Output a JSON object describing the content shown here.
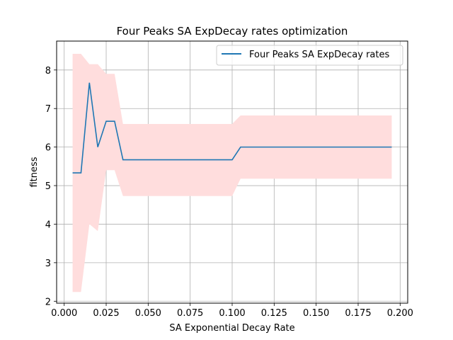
{
  "chart_data": {
    "type": "line",
    "title": "Four Peaks SA ExpDecay rates optimization",
    "xlabel": "SA Exponential Decay Rate",
    "ylabel": "fitness",
    "xlim": [
      -0.0045,
      0.2045
    ],
    "ylim": [
      1.95,
      8.75
    ],
    "xticks": [
      0.0,
      0.025,
      0.05,
      0.075,
      0.1,
      0.125,
      0.15,
      0.175,
      0.2
    ],
    "xtick_labels": [
      "0.000",
      "0.025",
      "0.050",
      "0.075",
      "0.100",
      "0.125",
      "0.150",
      "0.175",
      "0.200"
    ],
    "yticks": [
      2,
      3,
      4,
      5,
      6,
      7,
      8
    ],
    "ytick_labels": [
      "2",
      "3",
      "4",
      "5",
      "6",
      "7",
      "8"
    ],
    "grid": true,
    "legend_position": "top-right",
    "series": [
      {
        "name": "Four Peaks SA ExpDecay rates",
        "color": "#1f77b4",
        "band_color": "#ffdddd",
        "x": [
          0.005,
          0.01,
          0.015,
          0.02,
          0.025,
          0.03,
          0.035,
          0.04,
          0.045,
          0.05,
          0.055,
          0.06,
          0.065,
          0.07,
          0.075,
          0.08,
          0.085,
          0.09,
          0.095,
          0.1,
          0.105,
          0.11,
          0.115,
          0.12,
          0.125,
          0.13,
          0.135,
          0.14,
          0.145,
          0.15,
          0.155,
          0.16,
          0.165,
          0.17,
          0.175,
          0.18,
          0.185,
          0.19,
          0.195
        ],
        "values": [
          5.33,
          5.33,
          7.67,
          6.0,
          6.67,
          6.67,
          5.67,
          5.67,
          5.67,
          5.67,
          5.67,
          5.67,
          5.67,
          5.67,
          5.67,
          5.67,
          5.67,
          5.67,
          5.67,
          5.67,
          6.0,
          6.0,
          6.0,
          6.0,
          6.0,
          6.0,
          6.0,
          6.0,
          6.0,
          6.0,
          6.0,
          6.0,
          6.0,
          6.0,
          6.0,
          6.0,
          6.0,
          6.0,
          6.0
        ],
        "lower": [
          2.24,
          2.24,
          4.0,
          3.82,
          5.4,
          5.4,
          4.73,
          4.73,
          4.73,
          4.73,
          4.73,
          4.73,
          4.73,
          4.73,
          4.73,
          4.73,
          4.73,
          4.73,
          4.73,
          4.73,
          5.18,
          5.18,
          5.18,
          5.18,
          5.18,
          5.18,
          5.18,
          5.18,
          5.18,
          5.18,
          5.18,
          5.18,
          5.18,
          5.18,
          5.18,
          5.18,
          5.18,
          5.18,
          5.18
        ],
        "upper": [
          8.42,
          8.42,
          8.15,
          8.15,
          7.9,
          7.9,
          6.6,
          6.6,
          6.6,
          6.6,
          6.6,
          6.6,
          6.6,
          6.6,
          6.6,
          6.6,
          6.6,
          6.6,
          6.6,
          6.6,
          6.82,
          6.82,
          6.82,
          6.82,
          6.82,
          6.82,
          6.82,
          6.82,
          6.82,
          6.82,
          6.82,
          6.82,
          6.82,
          6.82,
          6.82,
          6.82,
          6.82,
          6.82,
          6.82
        ]
      }
    ]
  }
}
